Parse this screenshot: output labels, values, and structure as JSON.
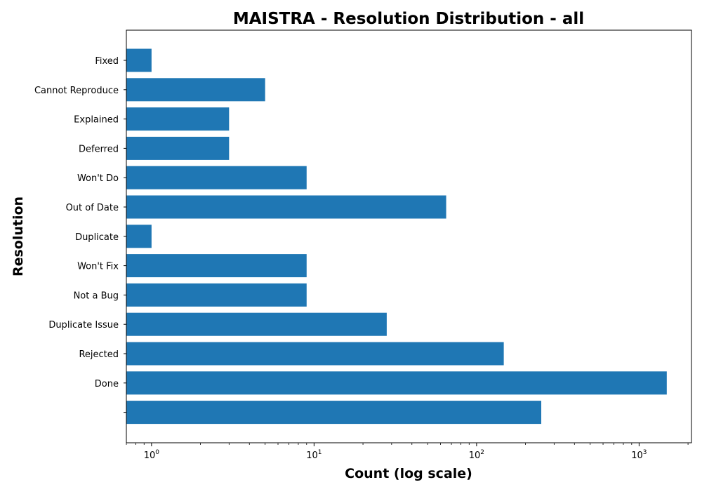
{
  "chart_data": {
    "type": "bar",
    "orientation": "horizontal",
    "title": "MAISTRA - Resolution Distribution - all",
    "xlabel": "Count (log scale)",
    "ylabel": "Resolution",
    "x_scale": "log",
    "xlim": [
      0.7,
      2100
    ],
    "x_ticks": [
      {
        "value": 1,
        "base": "10",
        "exp": "0"
      },
      {
        "value": 10,
        "base": "10",
        "exp": "1"
      },
      {
        "value": 100,
        "base": "10",
        "exp": "2"
      },
      {
        "value": 1000,
        "base": "10",
        "exp": "3"
      }
    ],
    "grid": false,
    "legend": "none",
    "bar_color": "#1f77b4",
    "categories": [
      "Fixed",
      "Cannot Reproduce",
      "Explained",
      "Deferred",
      "Won't Do",
      "Out of Date",
      "Duplicate",
      "Won't Fix",
      "Not a Bug",
      "Duplicate Issue",
      "Rejected",
      "Done",
      ""
    ],
    "values": [
      1,
      5,
      3,
      3,
      9,
      65,
      1,
      9,
      9,
      28,
      147,
      1480,
      250
    ]
  }
}
